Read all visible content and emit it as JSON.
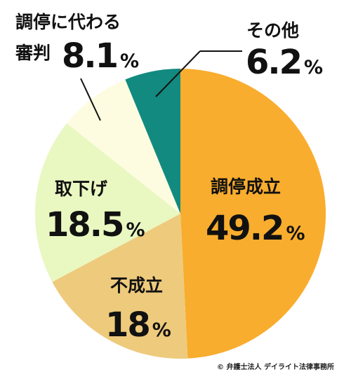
{
  "chart_data": {
    "type": "pie",
    "title": "",
    "start_angle_deg": 0,
    "direction": "clockwise",
    "slices": [
      {
        "label": "調停成立",
        "value": 49.2,
        "value_text": "49.2",
        "unit": "%",
        "color": "#F9AD2E"
      },
      {
        "label": "不成立",
        "value": 18,
        "value_text": "18",
        "unit": "%",
        "color": "#EECA7C"
      },
      {
        "label": "取下げ",
        "value": 18.5,
        "value_text": "18.5",
        "unit": "%",
        "color": "#E9F7C1"
      },
      {
        "label_line1": "調停に代わる",
        "label_line2": "審判",
        "value": 8.1,
        "value_text": "8.1",
        "unit": "%",
        "color": "#FDFCE1"
      },
      {
        "label": "その他",
        "value": 6.2,
        "value_text": "6.2",
        "unit": "%",
        "color": "#128A80"
      }
    ]
  },
  "credit": "© 弁護士法人 デイライト法律事務所"
}
